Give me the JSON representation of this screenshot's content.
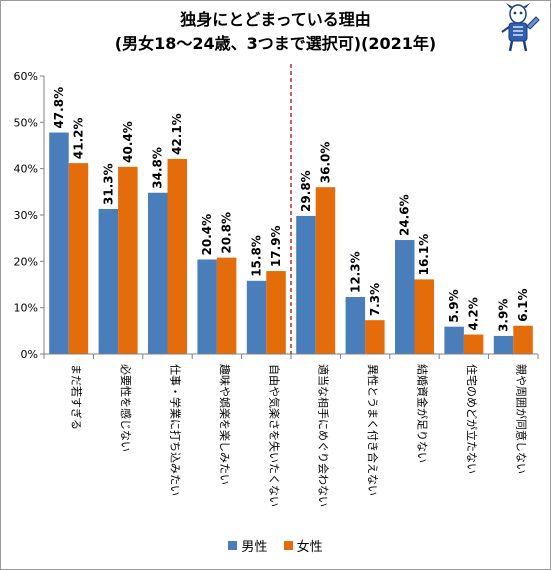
{
  "title": {
    "line1": "独身にとどまっている理由",
    "line2": "(男女18～24歳、3つまで選択可)(2021年)"
  },
  "colors": {
    "male": "#4a7ebb",
    "female": "#e46c0a",
    "divider": "#c00000"
  },
  "chart_data": {
    "type": "bar",
    "categories": [
      "まだ若すぎる",
      "必要性を感じない",
      "仕事・学業に打ち込みたい",
      "趣味や娯楽を楽しみたい",
      "自由や気楽さを失いたくない",
      "適当な相手にめぐり会わない",
      "異性とうまく付き合えない",
      "結婚資金が足りない",
      "住宅のめどが立たない",
      "親や周囲が同意しない"
    ],
    "series": [
      {
        "name": "男性",
        "values": [
          47.8,
          31.3,
          34.8,
          20.4,
          15.8,
          29.8,
          12.3,
          24.6,
          5.9,
          3.9
        ],
        "labels": [
          "47.8%",
          "31.3%",
          "34.8%",
          "20.4%",
          "15.8%",
          "29.8%",
          "12.3%",
          "24.6%",
          "5.9%",
          "3.9%"
        ]
      },
      {
        "name": "女性",
        "values": [
          41.2,
          40.4,
          42.1,
          20.8,
          17.9,
          36.0,
          7.3,
          16.1,
          4.2,
          6.1
        ],
        "labels": [
          "41.2%",
          "40.4%",
          "42.1%",
          "20.8%",
          "17.9%",
          "36.0%",
          "7.3%",
          "16.1%",
          "4.2%",
          "6.1%"
        ]
      }
    ],
    "yticks": [
      "0%",
      "10%",
      "20%",
      "30%",
      "40%",
      "50%",
      "60%"
    ],
    "ylim": [
      0,
      60
    ],
    "divider_after_index": 4,
    "grid": false,
    "legend": "bottom"
  }
}
